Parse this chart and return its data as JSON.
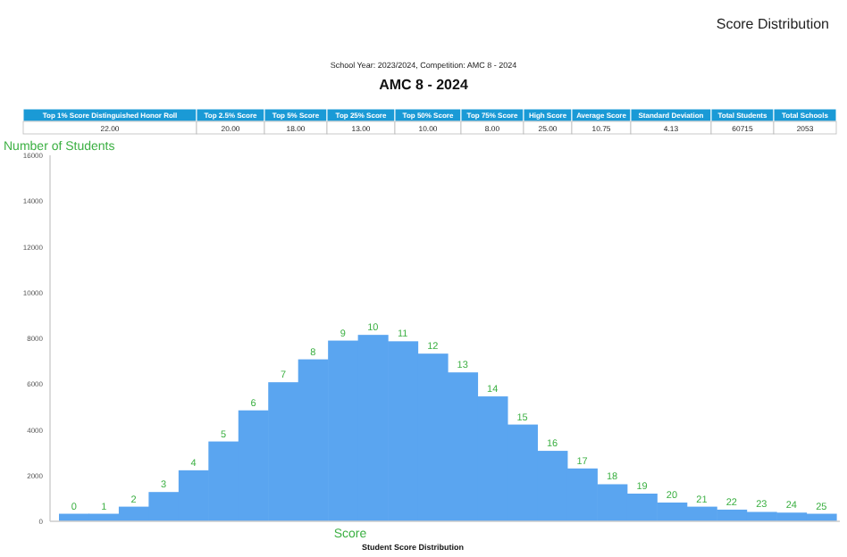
{
  "chart_data": {
    "type": "bar",
    "title": "AMC 8 - 2024",
    "subtitle": "School Year: 2023/2024, Competition: AMC 8 - 2024",
    "xlabel": "Score",
    "ylabel": "Number of Students",
    "annotations": [
      "Score Distribution",
      "Top 1% Score Distinguished Honor Roll",
      "Top 2.5% Score",
      "Top 5% Score",
      "Top 25% Score",
      "Top 50% Score",
      "Top 75% Score",
      "High Score",
      "Average Score",
      "Standard Deviation",
      "Total Students",
      "Total Schools",
      "22.00",
      "20.00",
      "18.00",
      "13.00",
      "10.00",
      "8.00",
      "25.00",
      "10.75",
      "4.13",
      "60715",
      "2053",
      "Student Score Distribution"
    ],
    "categories": [
      "0",
      "1",
      "2",
      "3",
      "4",
      "5",
      "6",
      "7",
      "8",
      "9",
      "10",
      "11",
      "12",
      "13",
      "14",
      "15",
      "16",
      "17",
      "18",
      "19",
      "20",
      "21",
      "22",
      "23",
      "24",
      "25"
    ],
    "values": [
      330,
      330,
      640,
      1280,
      2230,
      3490,
      4850,
      6080,
      7080,
      7900,
      8150,
      7870,
      7330,
      6510,
      5460,
      4230,
      3080,
      2310,
      1620,
      1210,
      820,
      640,
      510,
      410,
      380,
      330
    ],
    "color": "#5aa5f0",
    "ylim": [
      0,
      16000
    ],
    "yticks": [
      0,
      2000,
      4000,
      6000,
      8000,
      10000,
      12000,
      14000,
      16000
    ],
    "grid": false
  }
}
